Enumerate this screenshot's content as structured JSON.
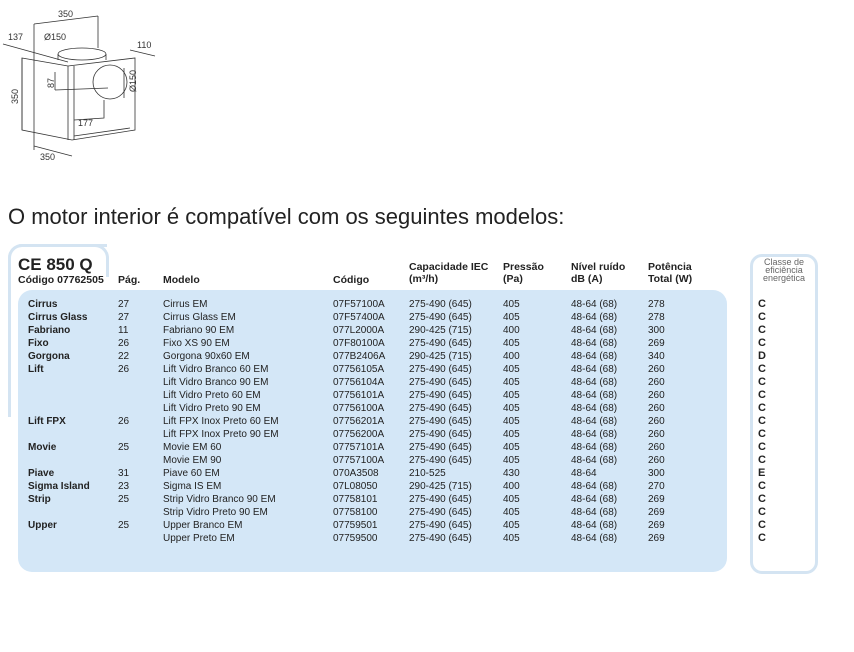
{
  "diagram": {
    "dims": [
      "350",
      "137",
      "Ø150",
      "110",
      "87",
      "Ø150",
      "350",
      "177",
      "350"
    ]
  },
  "heading": "O motor interior é compatível com os seguintes modelos:",
  "product": {
    "name": "CE 850 Q",
    "code": "Código 07762505"
  },
  "columns": {
    "pag": "Pág.",
    "modelo": "Modelo",
    "codigo": "Código",
    "cap1": "Capacidade IEC",
    "cap2": "(m³/h)",
    "pres1": "Pressão",
    "pres2": "(Pa)",
    "ruido1": "Nível ruído",
    "ruido2": "dB (A)",
    "pot1": "Potência",
    "pot2": "Total (W)"
  },
  "energy_title": [
    "Classe de",
    "eficiência",
    "energética"
  ],
  "rows": [
    {
      "brand": "Cirrus",
      "pag": "27",
      "modelo": "Cirrus EM",
      "codigo": "07F57100A",
      "cap": "275-490 (645)",
      "pres": "405",
      "ruido": "48-64 (68)",
      "pot": "278",
      "ec": "C"
    },
    {
      "brand": "Cirrus Glass",
      "pag": "27",
      "modelo": "Cirrus Glass EM",
      "codigo": "07F57400A",
      "cap": "275-490 (645)",
      "pres": "405",
      "ruido": "48-64 (68)",
      "pot": "278",
      "ec": "C"
    },
    {
      "brand": "Fabriano",
      "pag": "11",
      "modelo": "Fabriano 90 EM",
      "codigo": "077L2000A",
      "cap": "290-425 (715)",
      "pres": "400",
      "ruido": "48-64 (68)",
      "pot": "300",
      "ec": "C"
    },
    {
      "brand": "Fixo",
      "pag": "26",
      "modelo": "Fixo XS 90 EM",
      "codigo": "07F80100A",
      "cap": "275-490 (645)",
      "pres": "405",
      "ruido": "48-64 (68)",
      "pot": "269",
      "ec": "C"
    },
    {
      "brand": "Gorgona",
      "pag": "22",
      "modelo": "Gorgona 90x60 EM",
      "codigo": "077B2406A",
      "cap": "290-425 (715)",
      "pres": "400",
      "ruido": "48-64 (68)",
      "pot": "340",
      "ec": "D"
    },
    {
      "brand": "Lift",
      "pag": "26",
      "modelo": "Lift Vidro Branco 60 EM",
      "codigo": "07756105A",
      "cap": "275-490 (645)",
      "pres": "405",
      "ruido": "48-64 (68)",
      "pot": "260",
      "ec": "C"
    },
    {
      "brand": "",
      "pag": "",
      "modelo": "Lift Vidro Branco 90 EM",
      "codigo": "07756104A",
      "cap": "275-490 (645)",
      "pres": "405",
      "ruido": "48-64 (68)",
      "pot": "260",
      "ec": "C"
    },
    {
      "brand": "",
      "pag": "",
      "modelo": "Lift Vidro Preto 60 EM",
      "codigo": "07756101A",
      "cap": "275-490 (645)",
      "pres": "405",
      "ruido": "48-64 (68)",
      "pot": "260",
      "ec": "C"
    },
    {
      "brand": "",
      "pag": "",
      "modelo": "Lift Vidro Preto 90 EM",
      "codigo": "07756100A",
      "cap": "275-490 (645)",
      "pres": "405",
      "ruido": "48-64 (68)",
      "pot": "260",
      "ec": "C"
    },
    {
      "brand": "Lift FPX",
      "pag": "26",
      "modelo": "Lift FPX Inox Preto 60 EM",
      "codigo": "07756201A",
      "cap": "275-490 (645)",
      "pres": "405",
      "ruido": "48-64 (68)",
      "pot": "260",
      "ec": "C"
    },
    {
      "brand": "",
      "pag": "",
      "modelo": "Lift FPX Inox Preto 90 EM",
      "codigo": "07756200A",
      "cap": "275-490 (645)",
      "pres": "405",
      "ruido": "48-64 (68)",
      "pot": "260",
      "ec": "C"
    },
    {
      "brand": "Movie",
      "pag": "25",
      "modelo": "Movie EM 60",
      "codigo": "07757101A",
      "cap": "275-490 (645)",
      "pres": "405",
      "ruido": "48-64 (68)",
      "pot": "260",
      "ec": "C"
    },
    {
      "brand": "",
      "pag": "",
      "modelo": "Movie EM 90",
      "codigo": "07757100A",
      "cap": "275-490 (645)",
      "pres": "405",
      "ruido": "48-64 (68)",
      "pot": "260",
      "ec": "C"
    },
    {
      "brand": "Piave",
      "pag": "31",
      "modelo": "Piave 60 EM",
      "codigo": "070A3508",
      "cap": "210-525",
      "pres": "430",
      "ruido": "48-64",
      "pot": "300",
      "ec": "E"
    },
    {
      "brand": "Sigma Island",
      "pag": "23",
      "modelo": "Sigma IS EM",
      "codigo": "07L08050",
      "cap": "290-425 (715)",
      "pres": "400",
      "ruido": "48-64 (68)",
      "pot": "270",
      "ec": "C"
    },
    {
      "brand": "Strip",
      "pag": "25",
      "modelo": "Strip Vidro Branco 90 EM",
      "codigo": "07758101",
      "cap": "275-490 (645)",
      "pres": "405",
      "ruido": "48-64 (68)",
      "pot": "269",
      "ec": "C"
    },
    {
      "brand": "",
      "pag": "",
      "modelo": "Strip Vidro Preto 90 EM",
      "codigo": "07758100",
      "cap": "275-490 (645)",
      "pres": "405",
      "ruido": "48-64 (68)",
      "pot": "269",
      "ec": "C"
    },
    {
      "brand": "Upper",
      "pag": "25",
      "modelo": "Upper Branco EM",
      "codigo": "07759501",
      "cap": "275-490 (645)",
      "pres": "405",
      "ruido": "48-64 (68)",
      "pot": "269",
      "ec": "C"
    },
    {
      "brand": "",
      "pag": "",
      "modelo": "Upper Preto EM",
      "codigo": "07759500",
      "cap": "275-490 (645)",
      "pres": "405",
      "ruido": "48-64 (68)",
      "pot": "269",
      "ec": "C"
    }
  ]
}
